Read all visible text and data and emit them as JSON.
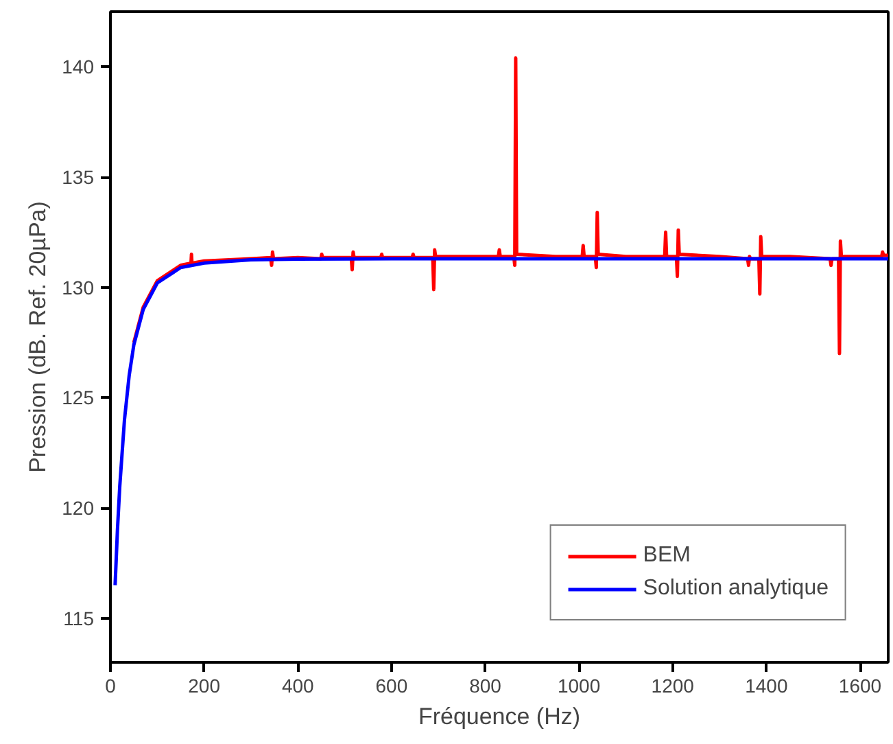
{
  "chart_data": {
    "type": "line",
    "xlabel": "Fréquence (Hz)",
    "ylabel": "Pression (dB. Ref. 20µPa)",
    "xlim": [
      0,
      1660
    ],
    "ylim": [
      113,
      142.5
    ],
    "xticks": [
      0,
      200,
      400,
      600,
      800,
      1000,
      1200,
      1400,
      1600
    ],
    "yticks": [
      115,
      120,
      125,
      130,
      135,
      140
    ],
    "grid": false,
    "legend": "bottom right",
    "marker": "none",
    "line_style": "solid",
    "series": [
      {
        "name": "BEM",
        "color": "#ff0000",
        "x": [
          50,
          70,
          100,
          150,
          172,
          173,
          174,
          200,
          300,
          342,
          344,
          346,
          348,
          400,
          449,
          451,
          453,
          514,
          516,
          518,
          520,
          577,
          579,
          581,
          644,
          646,
          648,
          688,
          690,
          692,
          694,
          750,
          828,
          830,
          832,
          861,
          863,
          865,
          867,
          950,
          1007,
          1009,
          1011,
          1035,
          1037,
          1039,
          1041,
          1100,
          1183,
          1185,
          1187,
          1208,
          1210,
          1212,
          1214,
          1300,
          1360,
          1362,
          1364,
          1366,
          1384,
          1386,
          1388,
          1390,
          1450,
          1536,
          1538,
          1540,
          1542,
          1554,
          1556,
          1558,
          1560,
          1600,
          1646,
          1648,
          1650,
          1660
        ],
        "values": [
          127.5,
          129.1,
          130.3,
          131,
          131.1,
          131.5,
          131.1,
          131.2,
          131.3,
          131.35,
          131.0,
          131.6,
          131.3,
          131.35,
          131.3,
          131.5,
          131.35,
          131.35,
          130.8,
          131.6,
          131.35,
          131.35,
          131.5,
          131.35,
          131.35,
          131.5,
          131.35,
          131.35,
          129.9,
          131.7,
          131.4,
          131.4,
          131.4,
          131.7,
          131.4,
          131.4,
          131.0,
          140.4,
          131.5,
          131.4,
          131.4,
          131.9,
          131.4,
          131.4,
          130.9,
          133.4,
          131.5,
          131.4,
          131.4,
          132.5,
          131.4,
          131.4,
          130.5,
          132.6,
          131.5,
          131.4,
          131.3,
          131.0,
          131.4,
          131.3,
          131.3,
          129.7,
          132.3,
          131.4,
          131.4,
          131.3,
          131.0,
          131.3,
          131.3,
          131.3,
          127.0,
          132.1,
          131.4,
          131.4,
          131.4,
          131.6,
          131.45,
          131.45
        ]
      },
      {
        "name": "Solution analytique",
        "color": "#0000ff",
        "x": [
          10,
          15,
          20,
          30,
          40,
          50,
          70,
          100,
          150,
          200,
          300,
          400,
          600,
          800,
          1000,
          1200,
          1400,
          1660
        ],
        "values": [
          116.5,
          119,
          121,
          124,
          126,
          127.4,
          129,
          130.2,
          130.9,
          131.1,
          131.25,
          131.28,
          131.3,
          131.3,
          131.3,
          131.3,
          131.3,
          131.3
        ]
      }
    ]
  }
}
